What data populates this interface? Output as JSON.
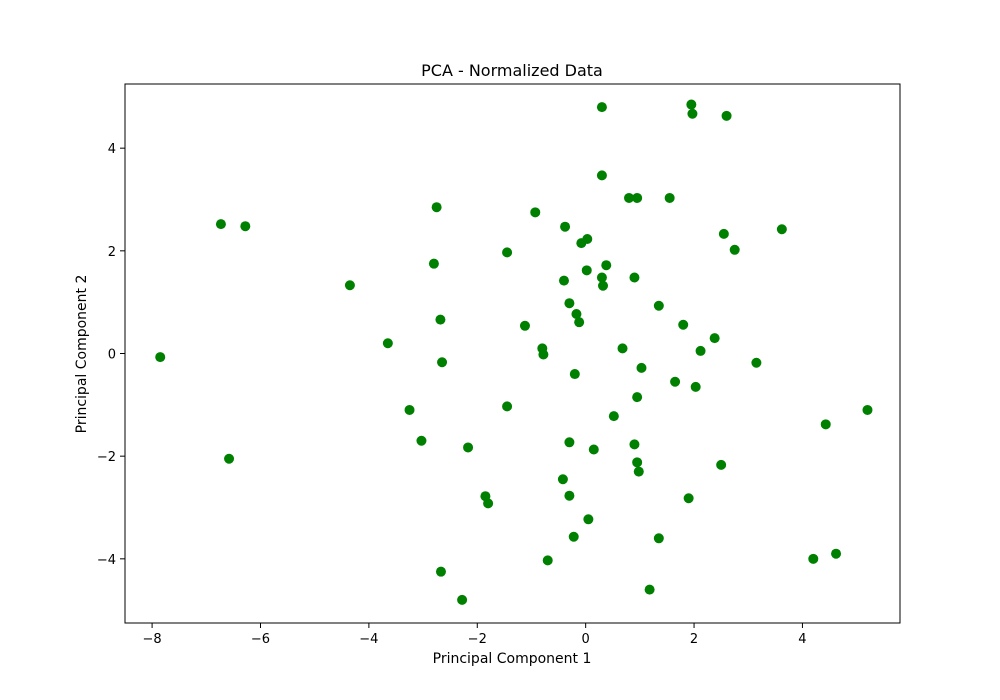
{
  "chart_data": {
    "type": "scatter",
    "title": "PCA - Normalized Data",
    "xlabel": "Principal Component 1",
    "ylabel": "Principal Component 2",
    "xlim": [
      -8.5,
      5.8
    ],
    "ylim": [
      -5.25,
      5.25
    ],
    "xticks": [
      -8,
      -6,
      -4,
      -2,
      0,
      2,
      4
    ],
    "xtick_labels": [
      "−8",
      "−6",
      "−4",
      "−2",
      "0",
      "2",
      "4"
    ],
    "yticks": [
      -4,
      -2,
      0,
      2,
      4
    ],
    "ytick_labels": [
      "−4",
      "−2",
      "0",
      "2",
      "4"
    ],
    "grid": false,
    "marker_color": "#008000",
    "series": [
      {
        "points": [
          [
            0.3,
            4.8
          ],
          [
            1.95,
            4.85
          ],
          [
            1.97,
            4.67
          ],
          [
            2.6,
            4.63
          ],
          [
            0.3,
            3.47
          ],
          [
            0.8,
            3.03
          ],
          [
            0.95,
            3.03
          ],
          [
            1.55,
            3.03
          ],
          [
            -2.75,
            2.85
          ],
          [
            -0.93,
            2.75
          ],
          [
            -6.73,
            2.52
          ],
          [
            -6.28,
            2.48
          ],
          [
            -0.38,
            2.47
          ],
          [
            0.03,
            2.23
          ],
          [
            -0.08,
            2.15
          ],
          [
            2.55,
            2.33
          ],
          [
            3.62,
            2.42
          ],
          [
            -1.45,
            1.97
          ],
          [
            2.75,
            2.02
          ],
          [
            -2.8,
            1.75
          ],
          [
            0.38,
            1.72
          ],
          [
            0.02,
            1.62
          ],
          [
            0.3,
            1.48
          ],
          [
            0.9,
            1.48
          ],
          [
            -0.4,
            1.42
          ],
          [
            0.32,
            1.32
          ],
          [
            -4.35,
            1.33
          ],
          [
            -0.3,
            0.98
          ],
          [
            1.35,
            0.93
          ],
          [
            -0.17,
            0.77
          ],
          [
            -2.68,
            0.66
          ],
          [
            -0.12,
            0.61
          ],
          [
            -1.12,
            0.54
          ],
          [
            1.8,
            0.56
          ],
          [
            2.38,
            0.3
          ],
          [
            -3.65,
            0.2
          ],
          [
            -0.8,
            0.1
          ],
          [
            0.68,
            0.1
          ],
          [
            2.12,
            0.05
          ],
          [
            -7.85,
            -0.07
          ],
          [
            -0.78,
            -0.02
          ],
          [
            -2.65,
            -0.17
          ],
          [
            3.15,
            -0.18
          ],
          [
            1.03,
            -0.28
          ],
          [
            -0.2,
            -0.4
          ],
          [
            1.65,
            -0.55
          ],
          [
            2.03,
            -0.65
          ],
          [
            0.95,
            -0.85
          ],
          [
            -1.45,
            -1.03
          ],
          [
            -3.25,
            -1.1
          ],
          [
            5.2,
            -1.1
          ],
          [
            0.52,
            -1.22
          ],
          [
            4.43,
            -1.38
          ],
          [
            -3.03,
            -1.7
          ],
          [
            -0.3,
            -1.73
          ],
          [
            0.9,
            -1.77
          ],
          [
            -2.17,
            -1.83
          ],
          [
            0.15,
            -1.87
          ],
          [
            -6.58,
            -2.05
          ],
          [
            0.95,
            -2.12
          ],
          [
            2.5,
            -2.17
          ],
          [
            0.98,
            -2.3
          ],
          [
            -0.42,
            -2.45
          ],
          [
            -1.85,
            -2.78
          ],
          [
            -0.3,
            -2.77
          ],
          [
            1.9,
            -2.82
          ],
          [
            -1.8,
            -2.92
          ],
          [
            0.05,
            -3.23
          ],
          [
            -0.22,
            -3.57
          ],
          [
            1.35,
            -3.6
          ],
          [
            4.62,
            -3.9
          ],
          [
            4.2,
            -4.0
          ],
          [
            -0.7,
            -4.03
          ],
          [
            -2.67,
            -4.25
          ],
          [
            1.18,
            -4.6
          ],
          [
            -2.28,
            -4.8
          ]
        ]
      }
    ]
  }
}
